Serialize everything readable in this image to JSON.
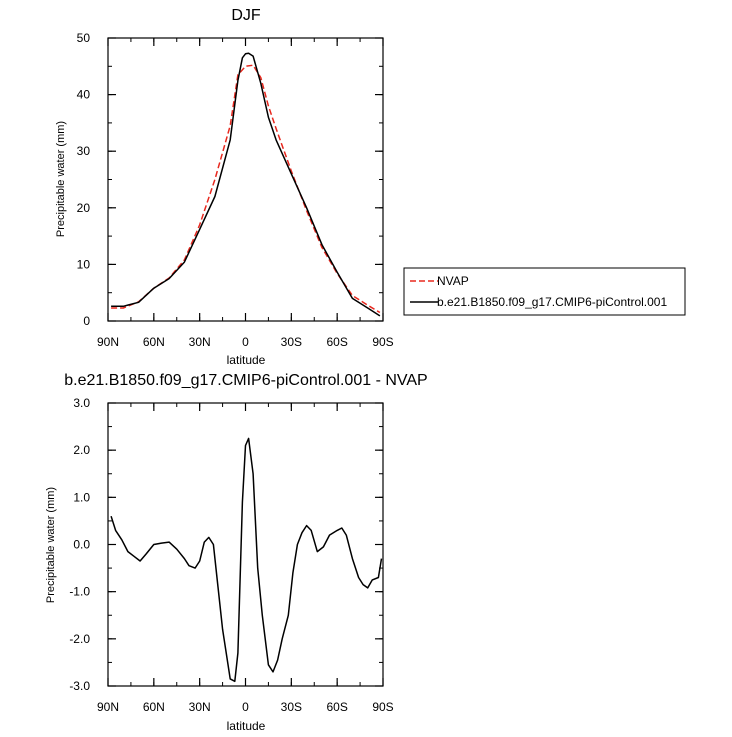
{
  "chart_data": [
    {
      "type": "line",
      "title": "DJF",
      "xlabel": "latitude",
      "ylabel": "Precipitable water (mm)",
      "x_tick_labels": [
        {
          "value": -90,
          "label": "90N"
        },
        {
          "value": -60,
          "label": "60N"
        },
        {
          "value": -30,
          "label": "30N"
        },
        {
          "value": 0,
          "label": "0"
        },
        {
          "value": 30,
          "label": "30S"
        },
        {
          "value": 60,
          "label": "60S"
        },
        {
          "value": 90,
          "label": "90S"
        }
      ],
      "y_tick_labels": [
        {
          "value": 0,
          "label": "0"
        },
        {
          "value": 10,
          "label": "10"
        },
        {
          "value": 20,
          "label": "20"
        },
        {
          "value": 30,
          "label": "30"
        },
        {
          "value": 40,
          "label": "40"
        },
        {
          "value": 50,
          "label": "50"
        }
      ],
      "xlim": [
        -90,
        90
      ],
      "ylim": [
        0,
        50
      ],
      "grid": false,
      "legend": "outside-right",
      "series": [
        {
          "name": "NVAP",
          "color": "#e8281e",
          "dash": "dashed",
          "x": [
            -88,
            -80,
            -70,
            -60,
            -50,
            -40,
            -30,
            -20,
            -10,
            -5,
            0,
            5,
            10,
            15,
            20,
            30,
            40,
            50,
            60,
            70,
            80,
            88
          ],
          "y": [
            2.3,
            2.3,
            3.4,
            5.8,
            7.6,
            10.8,
            17.0,
            25.0,
            34.5,
            43.5,
            45.0,
            45.2,
            43.0,
            38.0,
            34.0,
            26.5,
            19.5,
            13.0,
            8.4,
            4.5,
            2.8,
            1.5
          ]
        },
        {
          "name": "b.e21.B1850.f09_g17.CMIP6-piControl.001",
          "color": "#000000",
          "dash": "solid",
          "x": [
            -88,
            -80,
            -70,
            -60,
            -50,
            -40,
            -30,
            -20,
            -10,
            -5,
            -2,
            0,
            2,
            5,
            10,
            15,
            20,
            30,
            40,
            50,
            60,
            70,
            80,
            88
          ],
          "y": [
            2.6,
            2.6,
            3.3,
            5.8,
            7.5,
            10.4,
            16.2,
            22.0,
            32.0,
            42.5,
            46.5,
            47.2,
            47.3,
            46.8,
            42.0,
            36.0,
            32.0,
            26.0,
            20.0,
            13.5,
            8.6,
            4.0,
            2.3,
            0.9
          ]
        }
      ]
    },
    {
      "type": "line",
      "title": "b.e21.B1850.f09_g17.CMIP6-piControl.001 - NVAP",
      "xlabel": "latitude",
      "ylabel": "Precipitable water (mm)",
      "x_tick_labels": [
        {
          "value": -90,
          "label": "90N"
        },
        {
          "value": -60,
          "label": "60N"
        },
        {
          "value": -30,
          "label": "30N"
        },
        {
          "value": 0,
          "label": "0"
        },
        {
          "value": 30,
          "label": "30S"
        },
        {
          "value": 60,
          "label": "60S"
        },
        {
          "value": 90,
          "label": "90S"
        }
      ],
      "y_tick_labels": [
        {
          "value": -3,
          "label": "-3.0"
        },
        {
          "value": -2,
          "label": "-2.0"
        },
        {
          "value": -1,
          "label": "-1.0"
        },
        {
          "value": 0,
          "label": "0.0"
        },
        {
          "value": 1,
          "label": "1.0"
        },
        {
          "value": 2,
          "label": "2.0"
        },
        {
          "value": 3,
          "label": "3.0"
        }
      ],
      "xlim": [
        -90,
        90
      ],
      "ylim": [
        -3,
        3
      ],
      "grid": false,
      "series": [
        {
          "color": "#000000",
          "dash": "solid",
          "x": [
            -88,
            -85,
            -81,
            -77,
            -73,
            -69,
            -65,
            -60,
            -55,
            -50,
            -45,
            -40,
            -37,
            -33,
            -30,
            -27,
            -24,
            -21,
            -18,
            -15,
            -10,
            -7,
            -5,
            -2,
            0,
            2,
            5,
            8,
            11,
            15,
            18,
            21,
            24,
            28,
            31,
            34,
            37,
            40,
            43,
            47,
            51,
            55,
            60,
            63,
            66,
            70,
            74,
            77,
            80,
            83,
            87,
            89
          ],
          "y": [
            0.6,
            0.3,
            0.1,
            -0.15,
            -0.25,
            -0.35,
            -0.2,
            0.0,
            0.03,
            0.05,
            -0.1,
            -0.3,
            -0.45,
            -0.5,
            -0.35,
            0.05,
            0.15,
            0.0,
            -0.9,
            -1.8,
            -2.85,
            -2.9,
            -2.3,
            0.9,
            2.1,
            2.25,
            1.5,
            -0.5,
            -1.5,
            -2.55,
            -2.7,
            -2.45,
            -2.0,
            -1.5,
            -0.6,
            0.0,
            0.25,
            0.4,
            0.3,
            -0.15,
            -0.05,
            0.2,
            0.3,
            0.35,
            0.2,
            -0.3,
            -0.7,
            -0.85,
            -0.92,
            -0.75,
            -0.7,
            -0.3
          ]
        }
      ]
    }
  ]
}
